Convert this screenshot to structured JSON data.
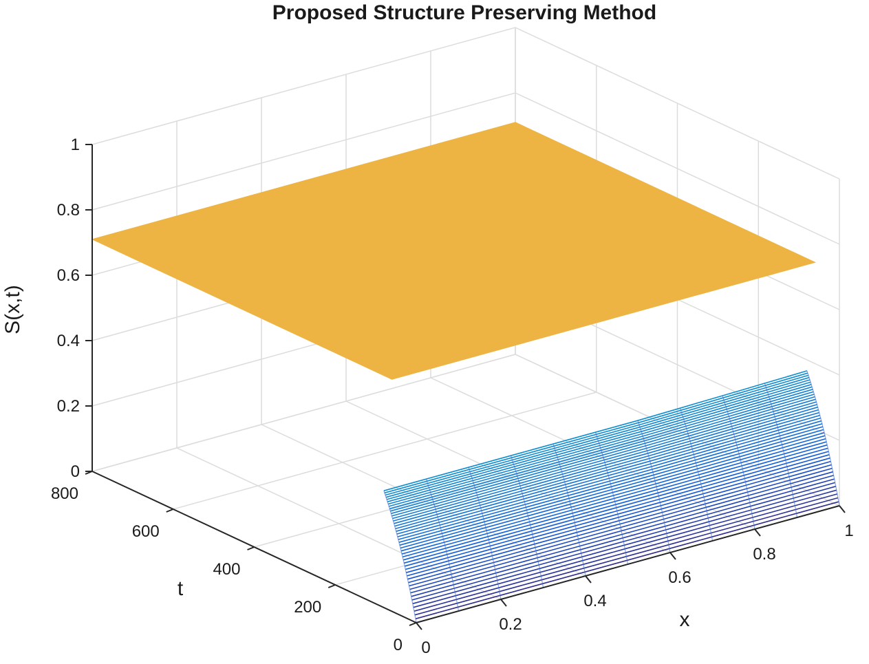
{
  "chart_data": {
    "type": "surface",
    "title": "Proposed Structure Preserving Method",
    "xlabel": "x",
    "ylabel": "t",
    "zlabel": "S(x,t)",
    "xlim": [
      0,
      1
    ],
    "ylim": [
      0,
      800
    ],
    "zlim": [
      0,
      1
    ],
    "x_ticks": [
      "0",
      "0.2",
      "0.4",
      "0.6",
      "0.8",
      "1"
    ],
    "y_ticks": [
      "0",
      "200",
      "400",
      "600",
      "800"
    ],
    "z_ticks": [
      "0",
      "0.2",
      "0.4",
      "0.6",
      "0.8",
      "1"
    ],
    "grid": true,
    "colormap": "parula",
    "surface_color_top": "#EDB443",
    "description_values": {
      "plateau_value": 0.71,
      "initial_value_at_x0_t0": 0.0,
      "initial_value_at_x1_t0": 0.0,
      "edge_x1_t_max_value": 0.8
    }
  }
}
